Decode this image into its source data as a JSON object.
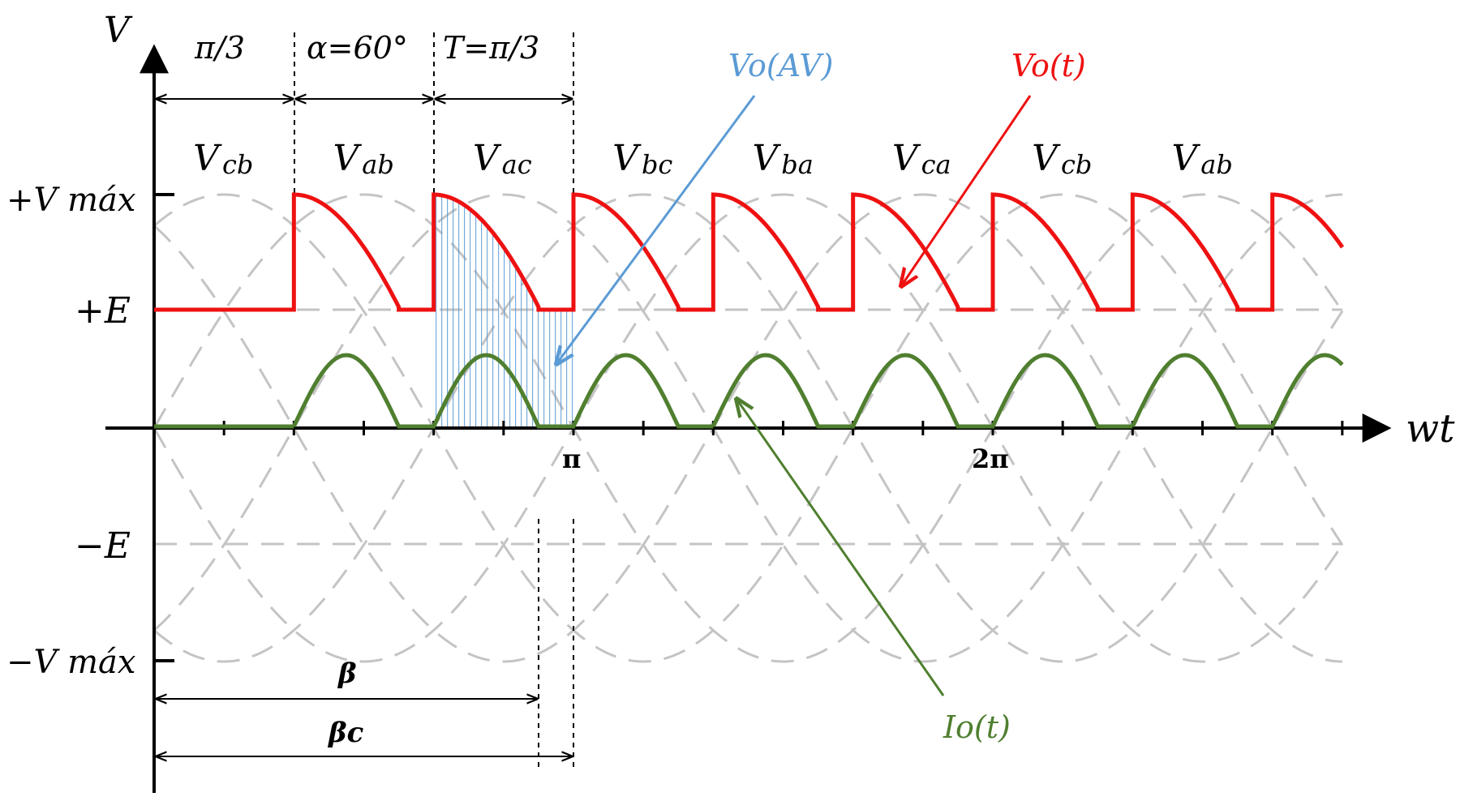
{
  "axes": {
    "y_label": "V",
    "x_label": "wt",
    "levels": {
      "vmax_pos": "+V máx",
      "e_pos": "+E",
      "e_neg": "−E",
      "vmax_neg": "−V máx"
    },
    "ticks": {
      "pi": "π",
      "two_pi": "2π"
    }
  },
  "intervals": {
    "first": "π/3",
    "alpha": "α=60°",
    "conduction": "T=π/3"
  },
  "phases": [
    "Vcb",
    "Vab",
    "Vac",
    "Vbc",
    "Vba",
    "Vca",
    "Vcb",
    "Vab"
  ],
  "annotations": {
    "vo_av": "Vo(AV)",
    "vo_t": "Vo(t)",
    "io_t": "Io(t)",
    "beta": "β",
    "beta_c": "βc"
  },
  "colors": {
    "output_voltage": "#ee1111",
    "current": "#4f7f2f",
    "average": "#5b9bd5",
    "grid_wave": "#c4c4c4",
    "axis": "#000000"
  }
}
